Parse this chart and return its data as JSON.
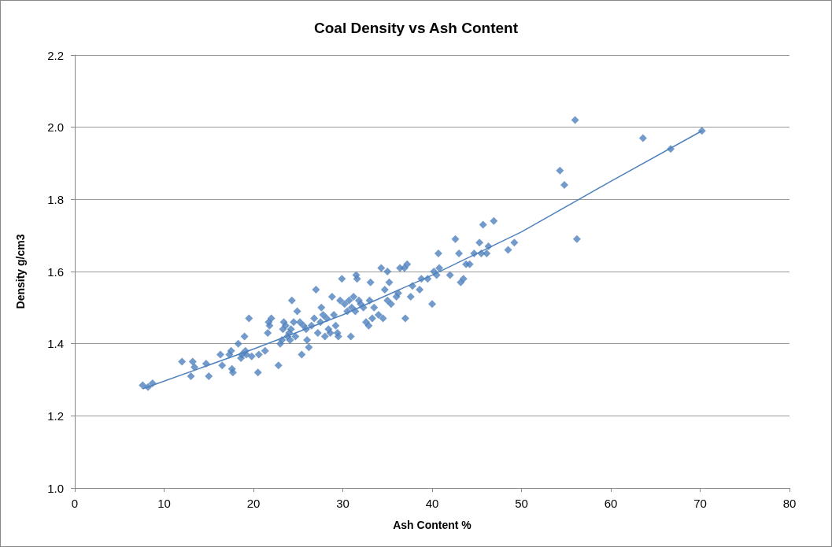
{
  "chart_data": {
    "type": "scatter",
    "title": "Coal Density vs Ash Content",
    "xlabel": "Ash Content %",
    "ylabel": "Density g/cm3",
    "xlim": [
      0,
      80
    ],
    "xticks": [
      0,
      10,
      20,
      30,
      40,
      50,
      60,
      70,
      80
    ],
    "ylim": [
      1.0,
      2.2
    ],
    "yticks": [
      {
        "value": 1.0,
        "label": "1.0"
      },
      {
        "value": 1.2,
        "label": "1.2"
      },
      {
        "value": 1.4,
        "label": "1.4"
      },
      {
        "value": 1.6,
        "label": "1.6"
      },
      {
        "value": 1.8,
        "label": "1.8"
      },
      {
        "value": 2.0,
        "label": "2.0"
      },
      {
        "value": 2.2,
        "label": "2.2"
      }
    ],
    "grid": "y",
    "marker": "diamond",
    "series": [
      {
        "color": "#4f81bd",
        "x": [
          7.6,
          8.2,
          8.7,
          12,
          13,
          13.2,
          13.4,
          14.7,
          15,
          16.3,
          16.5,
          17.3,
          17.5,
          17.6,
          17.7,
          18.3,
          18.6,
          18.7,
          19,
          19.1,
          19.2,
          19.5,
          19.8,
          20.5,
          20.6,
          21.3,
          21.6,
          21.7,
          21.8,
          22,
          22.8,
          23,
          23.2,
          23.3,
          23.4,
          23.6,
          23.8,
          24,
          24.1,
          24.2,
          24.3,
          24.5,
          24.7,
          24.9,
          25.2,
          25.4,
          25.6,
          25.9,
          26,
          26.2,
          26.5,
          26.8,
          27,
          27.2,
          27.5,
          27.6,
          27.8,
          28,
          28.2,
          28.4,
          28.6,
          28.8,
          29,
          29.2,
          29.4,
          29.5,
          29.7,
          29.9,
          30.2,
          30.5,
          30.7,
          30.9,
          31,
          31.2,
          31.4,
          31.5,
          31.6,
          31.8,
          32,
          32.3,
          32.6,
          32.9,
          33,
          33.1,
          33.3,
          33.5,
          34,
          34.3,
          34.5,
          34.7,
          35,
          35,
          35.2,
          35.4,
          36,
          36.2,
          36.4,
          36.9,
          37,
          37.2,
          37.6,
          37.8,
          38.6,
          38.8,
          39.5,
          40,
          40.2,
          40.5,
          40.7,
          40.8,
          42,
          42.6,
          43,
          43.2,
          43.5,
          43.8,
          44.2,
          44.7,
          45.3,
          45.5,
          45.7,
          46.1,
          46.3,
          46.9,
          48.5,
          49.2,
          54.3,
          54.8,
          56,
          56.2,
          63.6,
          66.7,
          70.2
        ],
        "values": [
          1.285,
          1.28,
          1.29,
          1.35,
          1.31,
          1.35,
          1.335,
          1.345,
          1.31,
          1.37,
          1.34,
          1.37,
          1.38,
          1.33,
          1.32,
          1.4,
          1.36,
          1.37,
          1.42,
          1.38,
          1.37,
          1.47,
          1.365,
          1.32,
          1.37,
          1.38,
          1.43,
          1.46,
          1.45,
          1.47,
          1.34,
          1.4,
          1.41,
          1.44,
          1.46,
          1.45,
          1.42,
          1.43,
          1.41,
          1.44,
          1.52,
          1.46,
          1.42,
          1.49,
          1.46,
          1.37,
          1.45,
          1.44,
          1.41,
          1.39,
          1.45,
          1.47,
          1.55,
          1.43,
          1.46,
          1.5,
          1.48,
          1.42,
          1.47,
          1.44,
          1.43,
          1.53,
          1.48,
          1.45,
          1.43,
          1.42,
          1.52,
          1.58,
          1.51,
          1.49,
          1.52,
          1.42,
          1.5,
          1.53,
          1.49,
          1.59,
          1.58,
          1.52,
          1.51,
          1.5,
          1.46,
          1.45,
          1.52,
          1.57,
          1.47,
          1.5,
          1.48,
          1.61,
          1.47,
          1.55,
          1.52,
          1.6,
          1.57,
          1.51,
          1.53,
          1.54,
          1.61,
          1.61,
          1.47,
          1.62,
          1.53,
          1.56,
          1.55,
          1.58,
          1.58,
          1.51,
          1.6,
          1.59,
          1.65,
          1.61,
          1.59,
          1.69,
          1.65,
          1.57,
          1.58,
          1.62,
          1.62,
          1.65,
          1.68,
          1.65,
          1.73,
          1.65,
          1.67,
          1.74,
          1.66,
          1.68,
          1.88,
          1.84,
          2.02,
          1.69,
          1.97,
          1.94,
          1.99
        ]
      },
      {
        "type": "line",
        "color": "#4f81bd",
        "marker": "none",
        "x": [
          7.6,
          20,
          30,
          40,
          50,
          60,
          70.2
        ],
        "values": [
          1.275,
          1.385,
          1.48,
          1.59,
          1.71,
          1.85,
          1.99
        ]
      }
    ]
  }
}
